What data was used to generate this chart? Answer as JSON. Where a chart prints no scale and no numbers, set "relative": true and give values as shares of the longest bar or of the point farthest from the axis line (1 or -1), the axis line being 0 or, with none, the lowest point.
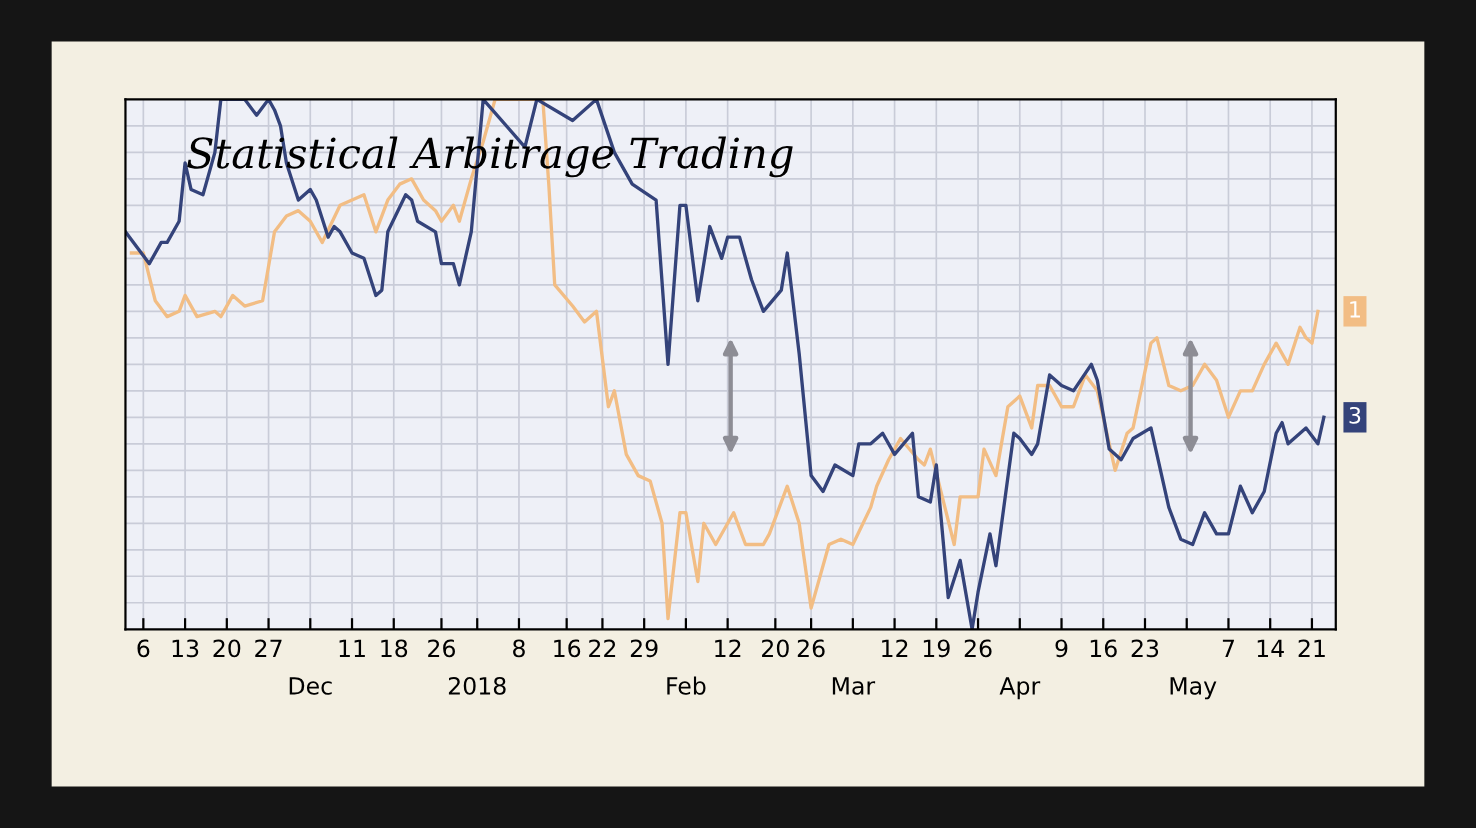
{
  "chart_data": {
    "type": "line",
    "title": "Statistical Arbitrage Trading",
    "relative": true,
    "grid": true,
    "line_style": "solid",
    "xlim": [
      "2017-11-03",
      "2018-05-25"
    ],
    "xticks": [
      {
        "value": "2017-11-06",
        "label": "6"
      },
      {
        "value": "2017-11-13",
        "label": "13"
      },
      {
        "value": "2017-11-20",
        "label": "20"
      },
      {
        "value": "2017-11-27",
        "label": "27"
      },
      {
        "value": "2017-12-04",
        "label": null
      },
      {
        "value": "2017-12-11",
        "label": "11"
      },
      {
        "value": "2017-12-18",
        "label": "18"
      },
      {
        "value": "2017-12-26",
        "label": "26"
      },
      {
        "value": "2018-01-01",
        "label": null
      },
      {
        "value": "2018-01-08",
        "label": "8"
      },
      {
        "value": "2018-01-16",
        "label": "16"
      },
      {
        "value": "2018-01-22",
        "label": "22"
      },
      {
        "value": "2018-01-29",
        "label": "29"
      },
      {
        "value": "2018-02-05",
        "label": null
      },
      {
        "value": "2018-02-12",
        "label": "12"
      },
      {
        "value": "2018-02-20",
        "label": "20"
      },
      {
        "value": "2018-02-26",
        "label": "26"
      },
      {
        "value": "2018-03-05",
        "label": null
      },
      {
        "value": "2018-03-12",
        "label": "12"
      },
      {
        "value": "2018-03-19",
        "label": "19"
      },
      {
        "value": "2018-03-26",
        "label": "26"
      },
      {
        "value": "2018-04-02",
        "label": null
      },
      {
        "value": "2018-04-09",
        "label": "9"
      },
      {
        "value": "2018-04-16",
        "label": "16"
      },
      {
        "value": "2018-04-23",
        "label": "23"
      },
      {
        "value": "2018-04-30",
        "label": null
      },
      {
        "value": "2018-05-07",
        "label": "7"
      },
      {
        "value": "2018-05-14",
        "label": "14"
      },
      {
        "value": "2018-05-21",
        "label": "21"
      }
    ],
    "x2lim": [
      "2017-11-03",
      "2018-05-25"
    ],
    "x2ticks": [
      {
        "value": "2017-12-04",
        "label": "Dec"
      },
      {
        "value": "2018-01-01",
        "label": "2018"
      },
      {
        "value": "2018-02-05",
        "label": "Feb"
      },
      {
        "value": "2018-03-05",
        "label": "Mar"
      },
      {
        "value": "2018-04-02",
        "label": "Apr"
      },
      {
        "value": "2018-05-01",
        "label": "May"
      }
    ],
    "annotations": [
      {
        "text": "1",
        "x": "2018-05-22",
        "y": 0.6
      },
      {
        "text": "3",
        "x": "2018-05-23",
        "y": 0.4
      }
    ],
    "series": [
      {
        "color": "#f2bd84",
        "x": [
          "2017-11-04",
          "2017-11-06",
          "2017-11-08",
          "2017-11-10",
          "2017-11-12",
          "2017-11-13",
          "2017-11-15",
          "2017-11-18",
          "2017-11-19",
          "2017-11-21",
          "2017-11-23",
          "2017-11-26",
          "2017-11-28",
          "2017-11-30",
          "2017-12-02",
          "2017-12-04",
          "2017-12-06",
          "2017-12-09",
          "2017-12-11",
          "2017-12-13",
          "2017-12-15",
          "2017-12-17",
          "2017-12-19",
          "2017-12-21",
          "2017-12-23",
          "2017-12-25",
          "2017-12-26",
          "2017-12-28",
          "2017-12-29",
          "2017-12-31",
          "2018-01-02",
          "2018-01-04",
          "2018-01-12",
          "2018-01-13",
          "2018-01-14",
          "2018-01-17",
          "2018-01-19",
          "2018-01-21",
          "2018-01-23",
          "2018-01-24",
          "2018-01-26",
          "2018-01-28",
          "2018-01-30",
          "2018-02-01",
          "2018-02-02",
          "2018-02-04",
          "2018-02-05",
          "2018-02-07",
          "2018-02-08",
          "2018-02-10",
          "2018-02-13",
          "2018-02-15",
          "2018-02-16",
          "2018-02-18",
          "2018-02-19",
          "2018-02-22",
          "2018-02-24",
          "2018-02-26",
          "2018-03-01",
          "2018-03-03",
          "2018-03-05",
          "2018-03-08",
          "2018-03-09",
          "2018-03-11",
          "2018-03-13",
          "2018-03-16",
          "2018-03-17",
          "2018-03-18",
          "2018-03-20",
          "2018-03-22",
          "2018-03-23",
          "2018-03-26",
          "2018-03-27",
          "2018-03-29",
          "2018-03-31",
          "2018-04-02",
          "2018-04-04",
          "2018-04-05",
          "2018-04-07",
          "2018-04-09",
          "2018-04-11",
          "2018-04-13",
          "2018-04-15",
          "2018-04-18",
          "2018-04-20",
          "2018-04-21",
          "2018-04-24",
          "2018-04-25",
          "2018-04-27",
          "2018-04-29",
          "2018-05-01",
          "2018-05-03",
          "2018-05-05",
          "2018-05-07",
          "2018-05-09",
          "2018-05-11",
          "2018-05-13",
          "2018-05-15",
          "2018-05-17",
          "2018-05-19",
          "2018-05-20",
          "2018-05-21",
          "2018-05-22"
        ],
        "values": [
          0.71,
          0.71,
          0.62,
          0.59,
          0.6,
          0.63,
          0.59,
          0.6,
          0.59,
          0.63,
          0.61,
          0.62,
          0.75,
          0.78,
          0.79,
          0.77,
          0.73,
          0.8,
          0.81,
          0.82,
          0.75,
          0.81,
          0.84,
          0.85,
          0.81,
          0.79,
          0.77,
          0.8,
          0.77,
          0.85,
          0.92,
          1,
          1,
          0.84,
          0.65,
          0.61,
          0.58,
          0.6,
          0.42,
          0.45,
          0.33,
          0.29,
          0.28,
          0.2,
          0.02,
          0.22,
          0.22,
          0.09,
          0.2,
          0.16,
          0.22,
          0.16,
          0.16,
          0.16,
          0.18,
          0.27,
          0.2,
          0.04,
          0.16,
          0.17,
          0.16,
          0.23,
          0.27,
          0.32,
          0.36,
          0.32,
          0.31,
          0.34,
          0.25,
          0.16,
          0.25,
          0.25,
          0.34,
          0.29,
          0.42,
          0.44,
          0.38,
          0.46,
          0.46,
          0.42,
          0.42,
          0.48,
          0.45,
          0.3,
          0.37,
          0.38,
          0.54,
          0.55,
          0.46,
          0.45,
          0.46,
          0.5,
          0.47,
          0.4,
          0.45,
          0.45,
          0.5,
          0.54,
          0.5,
          0.57,
          0.55,
          0.54,
          0.6
        ]
      },
      {
        "color": "#34437a",
        "x": [
          "2017-11-03",
          "2017-11-07",
          "2017-11-09",
          "2017-11-10",
          "2017-11-12",
          "2017-11-13",
          "2017-11-14",
          "2017-11-16",
          "2017-11-18",
          "2017-11-19",
          "2017-11-23",
          "2017-11-25",
          "2017-11-27",
          "2017-11-28",
          "2017-11-29",
          "2017-11-30",
          "2017-12-02",
          "2017-12-04",
          "2017-12-05",
          "2017-12-07",
          "2017-12-08",
          "2017-12-09",
          "2017-12-11",
          "2017-12-13",
          "2017-12-15",
          "2017-12-16",
          "2017-12-17",
          "2017-12-20",
          "2017-12-21",
          "2017-12-22",
          "2017-12-25",
          "2017-12-26",
          "2017-12-28",
          "2017-12-29",
          "2017-12-31",
          "2018-01-02",
          "2018-01-09",
          "2018-01-11",
          "2018-01-17",
          "2018-01-21",
          "2018-01-24",
          "2018-01-27",
          "2018-01-31",
          "2018-02-02",
          "2018-02-04",
          "2018-02-05",
          "2018-02-07",
          "2018-02-09",
          "2018-02-11",
          "2018-02-12",
          "2018-02-14",
          "2018-02-16",
          "2018-02-18",
          "2018-02-21",
          "2018-02-22",
          "2018-02-24",
          "2018-02-26",
          "2018-02-28",
          "2018-03-02",
          "2018-03-05",
          "2018-03-06",
          "2018-03-08",
          "2018-03-10",
          "2018-03-12",
          "2018-03-15",
          "2018-03-16",
          "2018-03-18",
          "2018-03-19",
          "2018-03-21",
          "2018-03-23",
          "2018-03-25",
          "2018-03-26",
          "2018-03-28",
          "2018-03-29",
          "2018-04-01",
          "2018-04-02",
          "2018-04-04",
          "2018-04-05",
          "2018-04-07",
          "2018-04-09",
          "2018-04-11",
          "2018-04-14",
          "2018-04-15",
          "2018-04-17",
          "2018-04-19",
          "2018-04-21",
          "2018-04-24",
          "2018-04-27",
          "2018-04-29",
          "2018-05-01",
          "2018-05-03",
          "2018-05-05",
          "2018-05-07",
          "2018-05-09",
          "2018-05-11",
          "2018-05-13",
          "2018-05-15",
          "2018-05-16",
          "2018-05-17",
          "2018-05-20",
          "2018-05-22",
          "2018-05-23"
        ],
        "values": [
          0.75,
          0.69,
          0.73,
          0.73,
          0.77,
          0.88,
          0.83,
          0.82,
          0.9,
          1,
          1,
          0.97,
          1,
          0.98,
          0.95,
          0.88,
          0.81,
          0.83,
          0.81,
          0.74,
          0.76,
          0.75,
          0.71,
          0.7,
          0.63,
          0.64,
          0.75,
          0.82,
          0.81,
          0.77,
          0.75,
          0.69,
          0.69,
          0.65,
          0.75,
          1,
          0.91,
          1,
          0.96,
          1,
          0.9,
          0.84,
          0.81,
          0.5,
          0.8,
          0.8,
          0.62,
          0.76,
          0.7,
          0.74,
          0.74,
          0.66,
          0.6,
          0.64,
          0.71,
          0.52,
          0.29,
          0.26,
          0.31,
          0.29,
          0.35,
          0.35,
          0.37,
          0.33,
          0.37,
          0.25,
          0.24,
          0.31,
          0.06,
          0.13,
          0,
          0.07,
          0.18,
          0.12,
          0.37,
          0.36,
          0.33,
          0.35,
          0.48,
          0.46,
          0.45,
          0.5,
          0.47,
          0.34,
          0.32,
          0.36,
          0.38,
          0.23,
          0.17,
          0.16,
          0.22,
          0.18,
          0.18,
          0.27,
          0.22,
          0.26,
          0.37,
          0.39,
          0.35,
          0.38,
          0.35,
          0.4
        ]
      }
    ]
  }
}
